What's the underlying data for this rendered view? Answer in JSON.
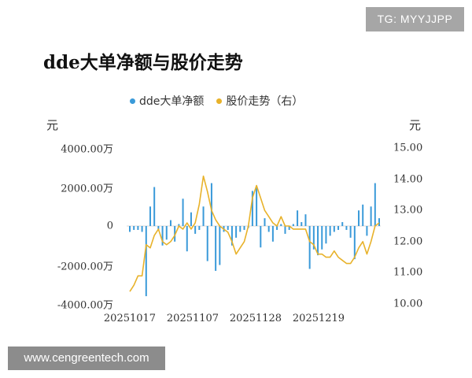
{
  "watermark_top": "TG: MYYJJPP",
  "watermark_bottom": "www.cengreentech.com",
  "chart_data": {
    "type": "bar+line",
    "title": "dde大单净额与股价走势",
    "legend": [
      {
        "label": "dde大单净额",
        "color": "#3a9ad9"
      },
      {
        "label": "股价走势（右）",
        "color": "#e8b22a"
      }
    ],
    "left_unit": "元",
    "right_unit": "元",
    "left_axis": {
      "ticks": [
        "4000.00万",
        "2000.00万",
        "0",
        "-2000.00万",
        "-4000.00万"
      ],
      "range": [
        -4000,
        4000
      ]
    },
    "right_axis": {
      "ticks": [
        "15.00",
        "14.00",
        "13.00",
        "12.00",
        "11.00",
        "10.00"
      ],
      "range": [
        10,
        15
      ]
    },
    "x_tick_labels": [
      "20251017",
      "20251107",
      "20251128",
      "20251219"
    ],
    "x_tick_indices": [
      0,
      15,
      30,
      45
    ],
    "grid": false,
    "legend_position": "top",
    "series": [
      {
        "name": "dde大单净额",
        "type": "bar",
        "axis": "left",
        "unit": "万元",
        "values": [
          -300,
          -200,
          -200,
          -300,
          -3600,
          1000,
          2000,
          -200,
          -1000,
          -700,
          300,
          -800,
          100,
          1400,
          -1300,
          700,
          -400,
          -200,
          1000,
          -1800,
          2200,
          -2300,
          -2000,
          -300,
          -200,
          -1000,
          -600,
          -300,
          -200,
          -100,
          1800,
          2000,
          -1100,
          400,
          -300,
          -800,
          -200,
          100,
          -400,
          -200,
          100,
          800,
          200,
          600,
          -2200,
          -1200,
          -1500,
          -1200,
          -900,
          -500,
          -300,
          -200,
          200,
          -200,
          -600,
          -1700,
          800,
          1100,
          -500,
          1000,
          2200,
          400
        ]
      },
      {
        "name": "股价走势（右）",
        "type": "line",
        "axis": "right",
        "values": [
          10.4,
          10.6,
          10.9,
          10.9,
          11.9,
          11.8,
          12.2,
          12.4,
          12.0,
          11.9,
          12.0,
          12.2,
          12.5,
          12.4,
          12.6,
          12.4,
          12.6,
          13.2,
          14.1,
          13.6,
          13.0,
          12.7,
          12.5,
          12.4,
          12.3,
          12.0,
          11.6,
          11.8,
          12.0,
          12.5,
          13.4,
          13.8,
          13.4,
          13.0,
          12.8,
          12.6,
          12.5,
          12.8,
          12.5,
          12.5,
          12.4,
          12.4,
          12.4,
          12.4,
          12.0,
          11.9,
          11.6,
          11.6,
          11.5,
          11.5,
          11.7,
          11.5,
          11.4,
          11.3,
          11.3,
          11.5,
          11.8,
          12.0,
          11.6,
          12.0,
          12.5,
          12.6
        ]
      }
    ]
  }
}
